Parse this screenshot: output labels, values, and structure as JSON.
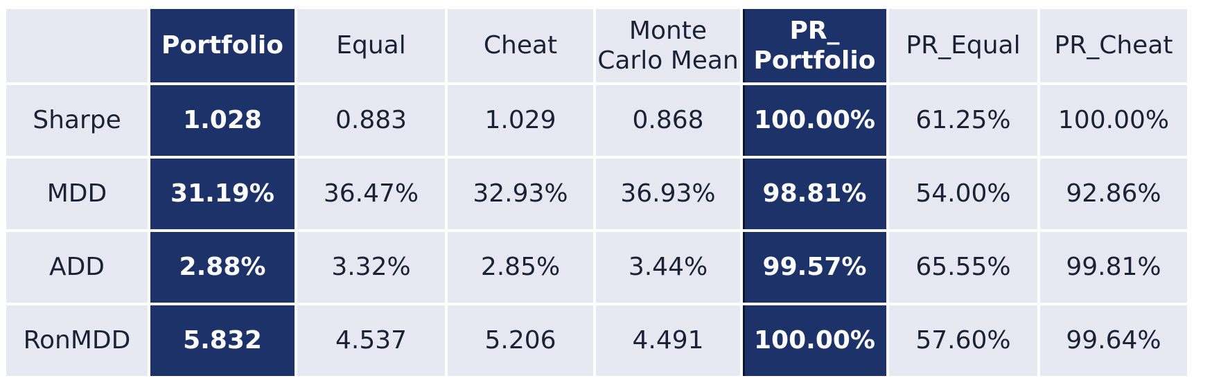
{
  "table": {
    "headers": [
      "",
      "Portfolio",
      "Equal",
      "Cheat",
      "Monte Carlo Mean",
      "PR_ Portfolio",
      "PR_Equal",
      "PR_Cheat"
    ],
    "header_lines": {
      "monte_carlo": [
        "Monte",
        "Carlo Mean"
      ],
      "pr_portfolio": [
        "PR_",
        "Portfolio"
      ]
    },
    "highlight_color": "#1d3268",
    "cell_color": "#e7e8f2",
    "rows": [
      {
        "label": "Sharpe",
        "values": [
          "1.028",
          "0.883",
          "1.029",
          "0.868",
          "100.00%",
          "61.25%",
          "100.00%"
        ]
      },
      {
        "label": "MDD",
        "values": [
          "31.19%",
          "36.47%",
          "32.93%",
          "36.93%",
          "98.81%",
          "54.00%",
          "92.86%"
        ]
      },
      {
        "label": "ADD",
        "values": [
          "2.88%",
          "3.32%",
          "2.85%",
          "3.44%",
          "99.57%",
          "65.55%",
          "99.81%"
        ]
      },
      {
        "label": "RonMDD",
        "values": [
          "5.832",
          "4.537",
          "5.206",
          "4.491",
          "100.00%",
          "57.60%",
          "99.64%"
        ]
      }
    ]
  }
}
